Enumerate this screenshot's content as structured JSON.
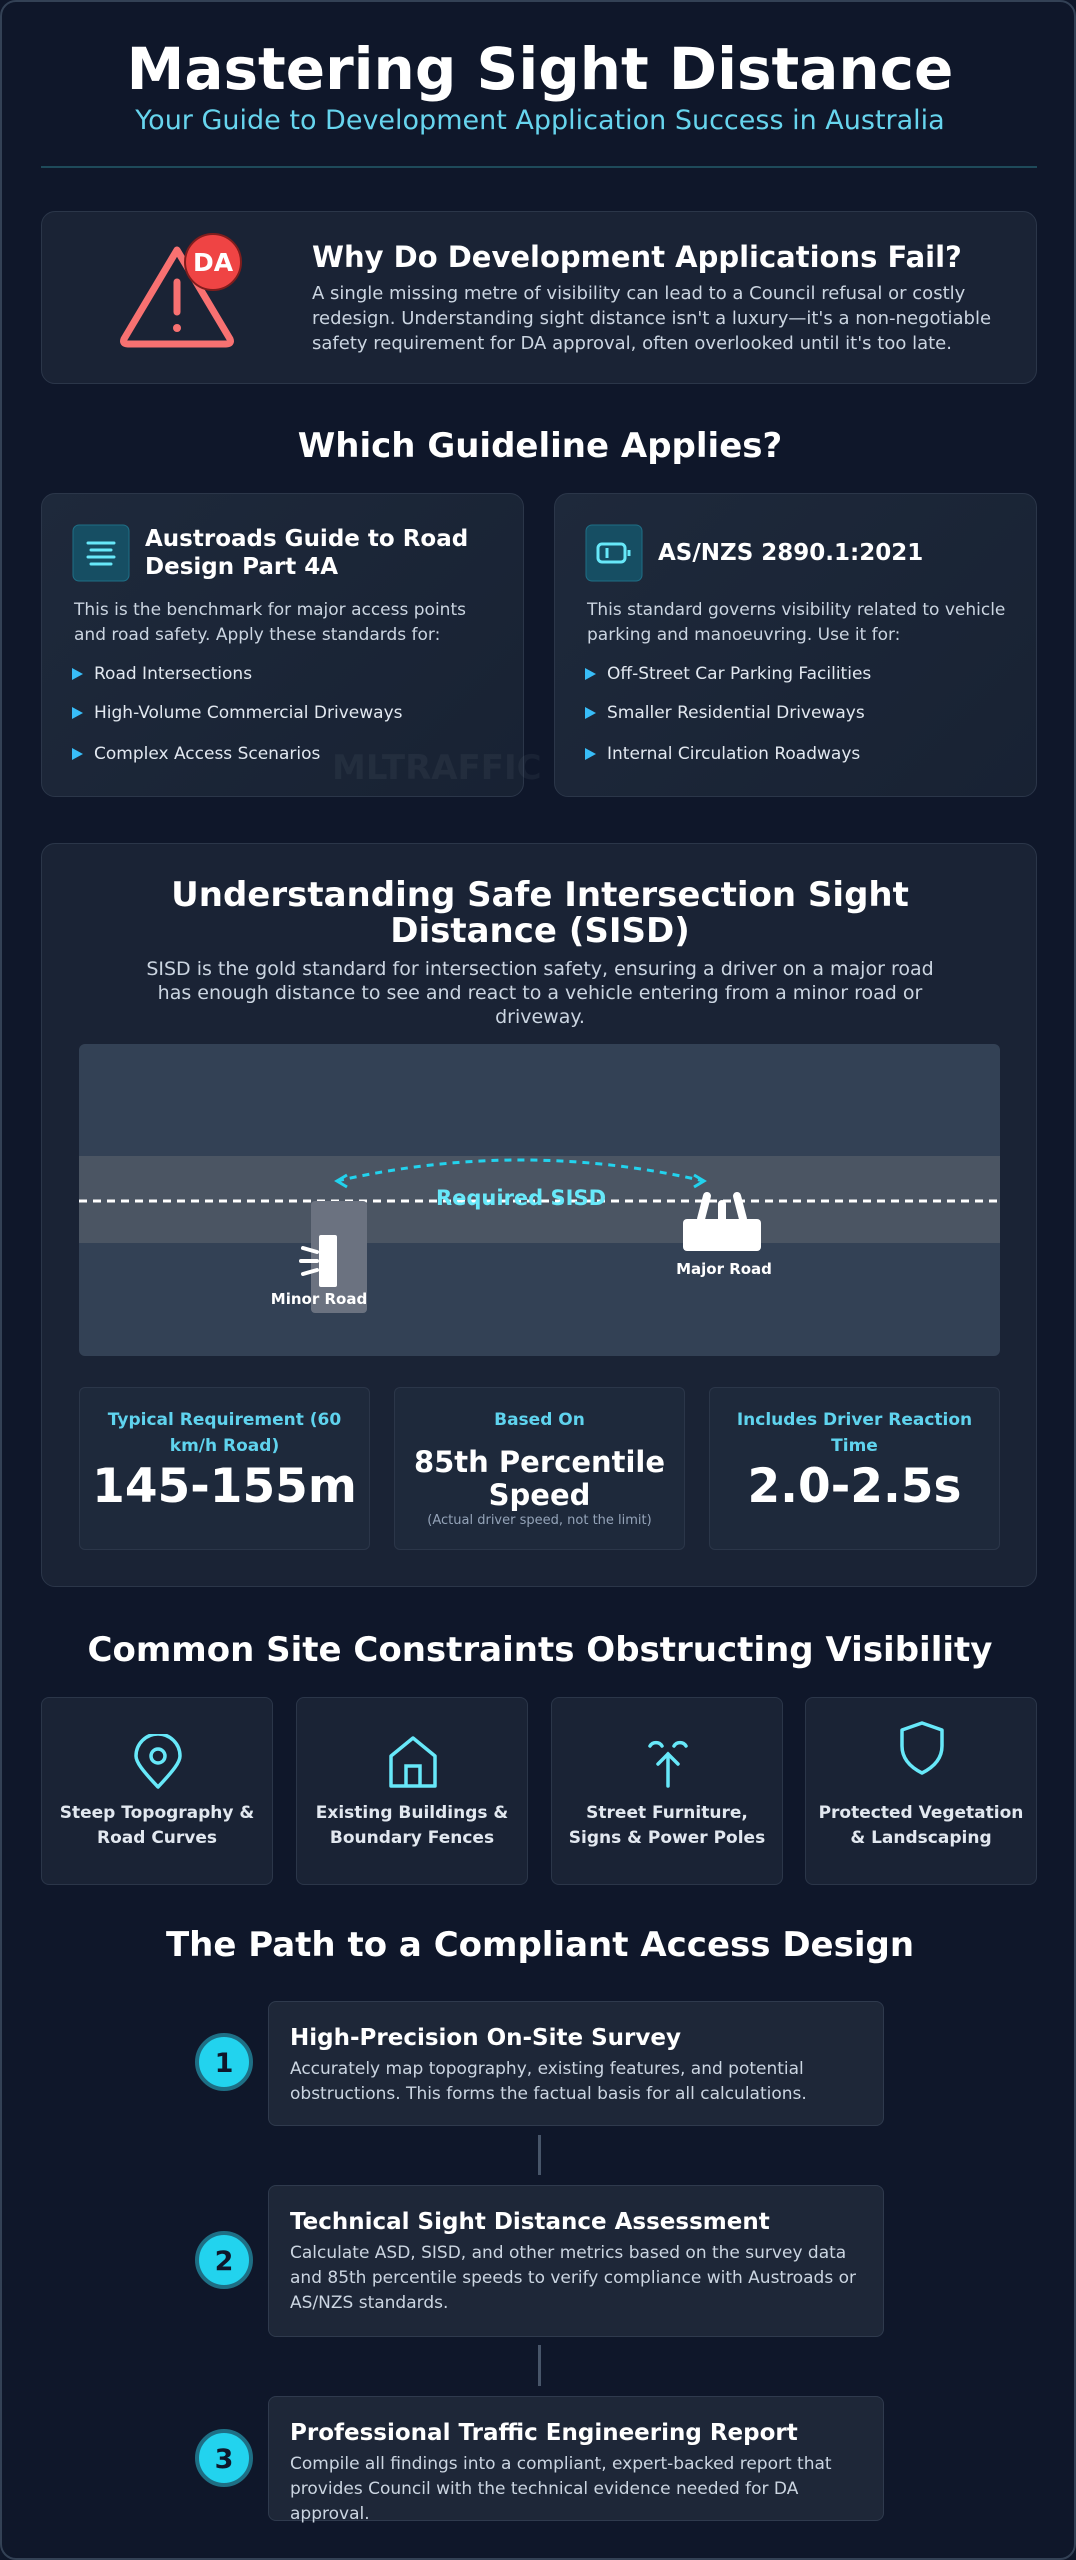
{
  "header": {
    "title": "Mastering Sight Distance",
    "subtitle": "Your Guide to Development Application Success in Australia"
  },
  "intro": {
    "badge": "DA",
    "title": "Why Do Development Applications Fail?",
    "text": "A single missing metre of visibility can lead to a Council refusal or costly redesign. Understanding sight distance isn't a luxury—it's a non-negotiable safety requirement for DA approval, often overlooked until it's too late."
  },
  "guidelines": {
    "title": "Which Guideline Applies?",
    "watermark": "MLTRAFFIC",
    "cards": [
      {
        "title": "Austroads Guide to Road Design Part 4A",
        "text": "This is the benchmark for major access points and road safety. Apply these standards for:",
        "items": [
          "Road Intersections",
          "High-Volume Commercial Driveways",
          "Complex Access Scenarios"
        ]
      },
      {
        "title": "AS/NZS 2890.1:2021",
        "text": "This standard governs visibility related to vehicle parking and manoeuvring. Use it for:",
        "items": [
          "Off-Street Car Parking Facilities",
          "Smaller Residential Driveways",
          "Internal Circulation Roadways"
        ]
      }
    ]
  },
  "sisd": {
    "title": "Understanding Safe Intersection Sight Distance (SISD)",
    "text": "SISD is the gold standard for intersection safety, ensuring a driver on a major road has enough distance to see and react to a vehicle entering from a minor road or driveway.",
    "diagram": {
      "required": "Required SISD",
      "minor_road": "Minor Road",
      "major_road": "Major Road"
    },
    "stats": [
      {
        "label": "Typical Requirement (60 km/h Road)",
        "value": "145-155m"
      },
      {
        "label": "Based On",
        "value": "85th Percentile Speed",
        "note": "(Actual driver speed, not the limit)"
      },
      {
        "label": "Includes Driver Reaction Time",
        "value": "2.0-2.5s"
      }
    ]
  },
  "constraints": {
    "title": "Common Site Constraints Obstructing Visibility",
    "items": [
      "Steep Topography & Road Curves",
      "Existing Buildings & Boundary Fences",
      "Street Furniture, Signs & Power Poles",
      "Protected Vegetation & Landscaping"
    ]
  },
  "path": {
    "title": "The Path to a Compliant Access Design",
    "steps": [
      {
        "number": "1",
        "title": "High-Precision On-Site Survey",
        "text": "Accurately map topography, existing features, and potential obstructions. This forms the factual basis for all calculations."
      },
      {
        "number": "2",
        "title": "Technical Sight Distance Assessment",
        "text": "Calculate ASD, SISD, and other metrics based on the survey data and 85th percentile speeds to verify compliance with Austroads or AS/NZS standards."
      },
      {
        "number": "3",
        "title": "Professional Traffic Engineering Report",
        "text": "Compile all findings into a compliant, expert-backed report that provides Council with the technical evidence needed for DA approval."
      }
    ]
  }
}
